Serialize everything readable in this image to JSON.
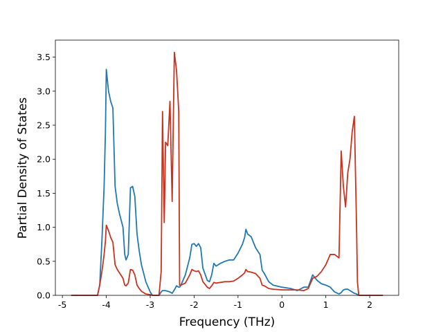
{
  "chart_data": {
    "type": "line",
    "xlabel": "Frequency (THz)",
    "ylabel": "Partial Density of States",
    "xlim": [
      -5.16,
      2.66
    ],
    "xticks": [
      -5,
      -4,
      -3,
      -2,
      -1,
      0,
      1,
      2
    ],
    "ylim": [
      0,
      3.75
    ],
    "yticks": [
      {
        "value": 0,
        "label": "0.0"
      },
      0.5,
      {
        "value": 1,
        "label": "1.0"
      },
      1.5,
      {
        "value": 2,
        "label": "2.0"
      },
      2.5,
      {
        "value": 3,
        "label": "3.0"
      },
      3.5
    ],
    "x": [
      -4.8,
      -4.2,
      -4.15,
      -4.1,
      -4.05,
      -4.02,
      -4.0,
      -3.95,
      -3.9,
      -3.85,
      -3.8,
      -3.75,
      -3.7,
      -3.62,
      -3.58,
      -3.55,
      -3.5,
      -3.45,
      -3.4,
      -3.35,
      -3.3,
      -3.25,
      -3.2,
      -3.1,
      -3.0,
      -2.95,
      -2.8,
      -2.75,
      -2.72,
      -2.68,
      -2.65,
      -2.6,
      -2.55,
      -2.5,
      -2.45,
      -2.4,
      -2.35,
      -2.33,
      -2.3,
      -2.2,
      -2.1,
      -2.05,
      -2.0,
      -1.95,
      -1.9,
      -1.85,
      -1.8,
      -1.7,
      -1.65,
      -1.6,
      -1.55,
      -1.5,
      -1.4,
      -1.3,
      -1.2,
      -1.1,
      -1.0,
      -0.9,
      -0.85,
      -0.82,
      -0.78,
      -0.7,
      -0.6,
      -0.5,
      -0.45,
      -0.4,
      -0.3,
      -0.2,
      0.0,
      0.2,
      0.35,
      0.5,
      0.6,
      0.7,
      0.8,
      0.9,
      1.0,
      1.1,
      1.2,
      1.3,
      1.35,
      1.4,
      1.45,
      1.5,
      1.55,
      1.6,
      1.65,
      1.7,
      1.72,
      1.75,
      2.3
    ],
    "series": [
      {
        "color": "#1f77b4",
        "values": [
          0,
          0,
          0.15,
          0.8,
          1.6,
          2.4,
          3.32,
          3.0,
          2.85,
          2.75,
          1.6,
          1.35,
          1.2,
          1.0,
          0.6,
          0.52,
          0.6,
          1.58,
          1.6,
          1.45,
          0.9,
          0.65,
          0.45,
          0.2,
          0.05,
          0,
          0,
          0.05,
          0.07,
          0.07,
          0.07,
          0.06,
          0.05,
          0.03,
          0.08,
          0.14,
          0.12,
          0.12,
          0.15,
          0.3,
          0.55,
          0.75,
          0.76,
          0.72,
          0.76,
          0.7,
          0.4,
          0.22,
          0.2,
          0.3,
          0.47,
          0.43,
          0.47,
          0.5,
          0.52,
          0.52,
          0.62,
          0.75,
          0.85,
          0.97,
          0.9,
          0.86,
          0.7,
          0.6,
          0.37,
          0.32,
          0.2,
          0.15,
          0.12,
          0.1,
          0.07,
          0.12,
          0.12,
          0.3,
          0.22,
          0.17,
          0.15,
          0.12,
          0.05,
          0.02,
          0.04,
          0.08,
          0.09,
          0.09,
          0.07,
          0.05,
          0.03,
          0.02,
          0.01,
          0,
          0
        ]
      },
      {
        "color": "#c8321e",
        "values": [
          0,
          0,
          0.15,
          0.35,
          0.6,
          0.8,
          1.03,
          0.95,
          0.85,
          0.78,
          0.45,
          0.38,
          0.33,
          0.25,
          0.15,
          0.14,
          0.18,
          0.38,
          0.37,
          0.3,
          0.15,
          0.1,
          0.06,
          0.02,
          0.01,
          0,
          0,
          0.35,
          2.7,
          1.07,
          2.25,
          2.2,
          2.85,
          1.38,
          3.57,
          3.3,
          2.7,
          0.15,
          0.15,
          0.18,
          0.3,
          0.38,
          0.36,
          0.35,
          0.36,
          0.3,
          0.2,
          0.12,
          0.1,
          0.14,
          0.19,
          0.18,
          0.19,
          0.2,
          0.2,
          0.21,
          0.25,
          0.3,
          0.33,
          0.38,
          0.35,
          0.34,
          0.32,
          0.25,
          0.15,
          0.14,
          0.1,
          0.09,
          0.08,
          0.08,
          0.08,
          0.07,
          0.1,
          0.25,
          0.28,
          0.35,
          0.45,
          0.6,
          0.6,
          0.55,
          2.12,
          1.6,
          1.3,
          1.8,
          2.0,
          2.4,
          2.63,
          1.0,
          0.2,
          0,
          0
        ]
      }
    ]
  }
}
